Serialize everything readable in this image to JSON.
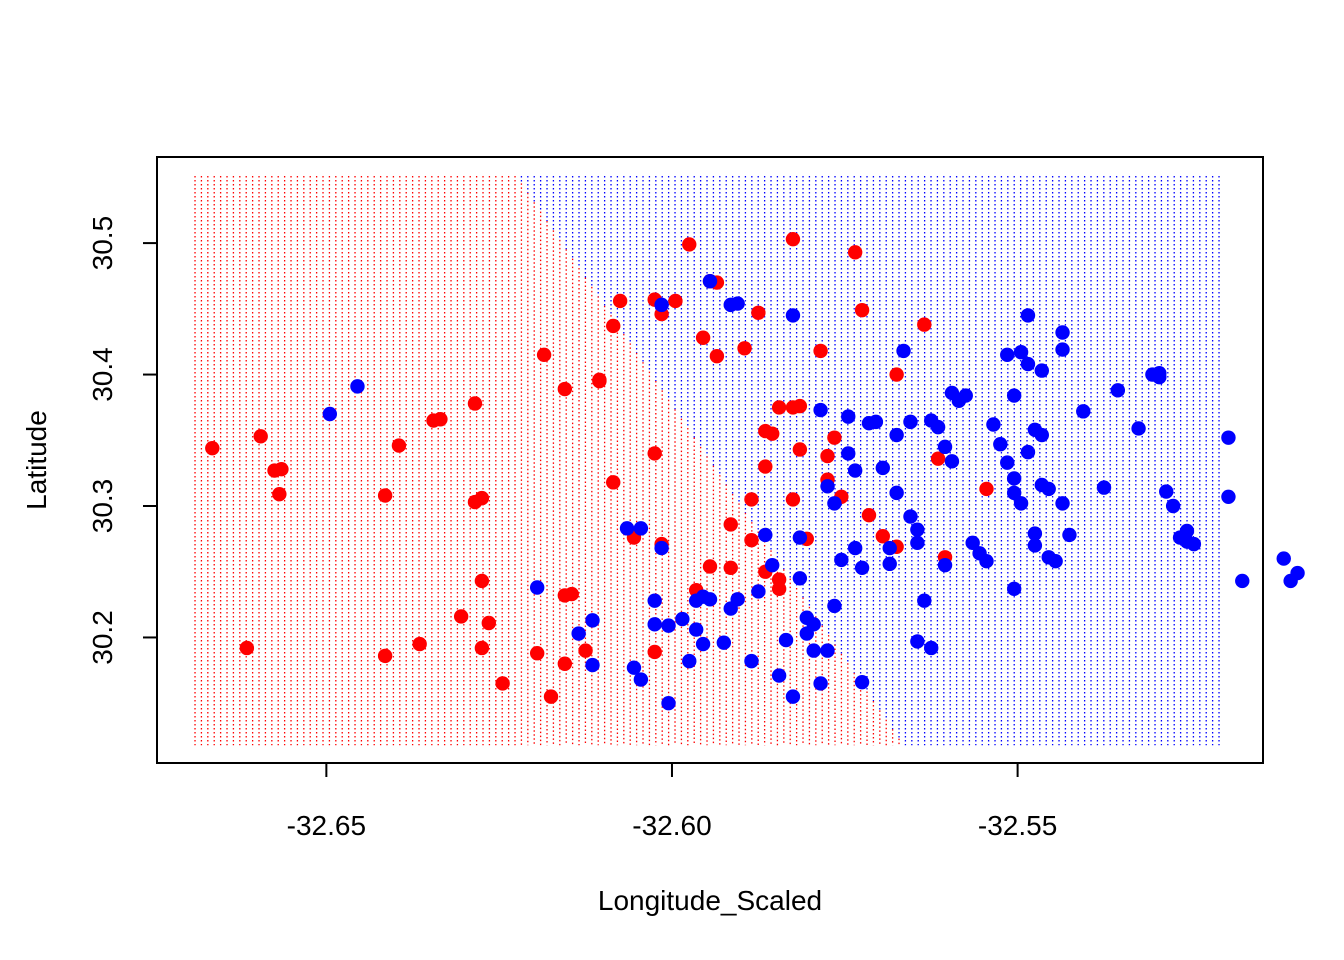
{
  "chart_data": {
    "type": "scatter",
    "title": "",
    "xlabel": "Longitude_Scaled",
    "ylabel": "Latitude",
    "xlim": [
      -32.6745,
      -32.5145
    ],
    "ylim": [
      30.1045,
      30.5655
    ],
    "x_ticks": [
      -32.65,
      -32.6,
      -32.55
    ],
    "x_tick_labels": [
      "-32.65",
      "-32.60",
      "-32.55"
    ],
    "y_ticks": [
      30.2,
      30.3,
      30.4,
      30.5
    ],
    "y_tick_labels": [
      "30.2",
      "30.3",
      "30.4",
      "30.5"
    ],
    "colors": {
      "class_red": "#ff0000",
      "class_blue": "#0000ff"
    },
    "decision_grid": {
      "x_range": [
        -32.669,
        -32.5205
      ],
      "y_range": [
        30.118,
        30.551
      ],
      "boundary_x": -32.6225,
      "boundary_y_low": 30.118,
      "boundary_y_high": 30.551,
      "boundary_top_x": -32.5665,
      "left_color": "#ff0000",
      "right_color": "#0000ff"
    },
    "series": [
      {
        "color": "#ff0000",
        "points": [
          [
            -32.6665,
            30.344
          ],
          [
            -32.6595,
            30.353
          ],
          [
            -32.6575,
            30.327
          ],
          [
            -32.6565,
            30.328
          ],
          [
            -32.6568,
            30.309
          ],
          [
            -32.6615,
            30.192
          ],
          [
            -32.6415,
            30.186
          ],
          [
            -32.6395,
            30.346
          ],
          [
            -32.6415,
            30.308
          ],
          [
            -32.6345,
            30.365
          ],
          [
            -32.6335,
            30.366
          ],
          [
            -32.6365,
            30.195
          ],
          [
            -32.6305,
            30.216
          ],
          [
            -32.6285,
            30.378
          ],
          [
            -32.6275,
            30.306
          ],
          [
            -32.6285,
            30.303
          ],
          [
            -32.6275,
            30.243
          ],
          [
            -32.6275,
            30.192
          ],
          [
            -32.6265,
            30.211
          ],
          [
            -32.6245,
            30.165
          ],
          [
            -32.6195,
            30.188
          ],
          [
            -32.6185,
            30.415
          ],
          [
            -32.6175,
            30.155
          ],
          [
            -32.6155,
            30.389
          ],
          [
            -32.6155,
            30.232
          ],
          [
            -32.6145,
            30.233
          ],
          [
            -32.6155,
            30.18
          ],
          [
            -32.6125,
            30.19
          ],
          [
            -32.6105,
            30.395
          ],
          [
            -32.6105,
            30.396
          ],
          [
            -32.6085,
            30.437
          ],
          [
            -32.6085,
            30.318
          ],
          [
            -32.6075,
            30.456
          ],
          [
            -32.6055,
            30.276
          ],
          [
            -32.6025,
            30.457
          ],
          [
            -32.6025,
            30.34
          ],
          [
            -32.6015,
            30.446
          ],
          [
            -32.6015,
            30.271
          ],
          [
            -32.6025,
            30.189
          ],
          [
            -32.5995,
            30.456
          ],
          [
            -32.5975,
            30.499
          ],
          [
            -32.5965,
            30.236
          ],
          [
            -32.5945,
            30.471
          ],
          [
            -32.5955,
            30.428
          ],
          [
            -32.5935,
            30.47
          ],
          [
            -32.5945,
            30.254
          ],
          [
            -32.5935,
            30.414
          ],
          [
            -32.5915,
            30.286
          ],
          [
            -32.5915,
            30.253
          ],
          [
            -32.5895,
            30.42
          ],
          [
            -32.5885,
            30.274
          ],
          [
            -32.5875,
            30.447
          ],
          [
            -32.5885,
            30.305
          ],
          [
            -32.5865,
            30.357
          ],
          [
            -32.5855,
            30.355
          ],
          [
            -32.5865,
            30.33
          ],
          [
            -32.5865,
            30.25
          ],
          [
            -32.5845,
            30.244
          ],
          [
            -32.5845,
            30.237
          ],
          [
            -32.5845,
            30.375
          ],
          [
            -32.5825,
            30.503
          ],
          [
            -32.5825,
            30.375
          ],
          [
            -32.5815,
            30.376
          ],
          [
            -32.5825,
            30.305
          ],
          [
            -32.5815,
            30.343
          ],
          [
            -32.5805,
            30.275
          ],
          [
            -32.5785,
            30.418
          ],
          [
            -32.5775,
            30.338
          ],
          [
            -32.5775,
            30.32
          ],
          [
            -32.5765,
            30.352
          ],
          [
            -32.5755,
            30.307
          ],
          [
            -32.5735,
            30.493
          ],
          [
            -32.5725,
            30.449
          ],
          [
            -32.5715,
            30.293
          ],
          [
            -32.5695,
            30.277
          ],
          [
            -32.5675,
            30.269
          ],
          [
            -32.5675,
            30.4
          ],
          [
            -32.5635,
            30.438
          ],
          [
            -32.5615,
            30.336
          ],
          [
            -32.5605,
            30.261
          ],
          [
            -32.5545,
            30.313
          ]
        ]
      },
      {
        "color": "#0000ff",
        "points": [
          [
            -32.6495,
            30.37
          ],
          [
            -32.6455,
            30.391
          ],
          [
            -32.6195,
            30.238
          ],
          [
            -32.6135,
            30.203
          ],
          [
            -32.6115,
            30.213
          ],
          [
            -32.6115,
            30.179
          ],
          [
            -32.6065,
            30.283
          ],
          [
            -32.6055,
            30.177
          ],
          [
            -32.6045,
            30.168
          ],
          [
            -32.6045,
            30.283
          ],
          [
            -32.6025,
            30.228
          ],
          [
            -32.6025,
            30.21
          ],
          [
            -32.6015,
            30.453
          ],
          [
            -32.6015,
            30.268
          ],
          [
            -32.6005,
            30.209
          ],
          [
            -32.6005,
            30.15
          ],
          [
            -32.5985,
            30.214
          ],
          [
            -32.5975,
            30.182
          ],
          [
            -32.5965,
            30.206
          ],
          [
            -32.5955,
            30.195
          ],
          [
            -32.5965,
            30.228
          ],
          [
            -32.5955,
            30.231
          ],
          [
            -32.5945,
            30.229
          ],
          [
            -32.5945,
            30.471
          ],
          [
            -32.5915,
            30.453
          ],
          [
            -32.5905,
            30.454
          ],
          [
            -32.5925,
            30.196
          ],
          [
            -32.5915,
            30.222
          ],
          [
            -32.5905,
            30.229
          ],
          [
            -32.5885,
            30.182
          ],
          [
            -32.5875,
            30.235
          ],
          [
            -32.5865,
            30.278
          ],
          [
            -32.5855,
            30.255
          ],
          [
            -32.5845,
            30.171
          ],
          [
            -32.5835,
            30.198
          ],
          [
            -32.5825,
            30.445
          ],
          [
            -32.5825,
            30.155
          ],
          [
            -32.5815,
            30.245
          ],
          [
            -32.5815,
            30.276
          ],
          [
            -32.5805,
            30.203
          ],
          [
            -32.5805,
            30.215
          ],
          [
            -32.5795,
            30.21
          ],
          [
            -32.5795,
            30.19
          ],
          [
            -32.5785,
            30.165
          ],
          [
            -32.5775,
            30.19
          ],
          [
            -32.5785,
            30.373
          ],
          [
            -32.5775,
            30.315
          ],
          [
            -32.5765,
            30.224
          ],
          [
            -32.5765,
            30.302
          ],
          [
            -32.5755,
            30.259
          ],
          [
            -32.5745,
            30.34
          ],
          [
            -32.5745,
            30.368
          ],
          [
            -32.5735,
            30.327
          ],
          [
            -32.5735,
            30.268
          ],
          [
            -32.5725,
            30.166
          ],
          [
            -32.5725,
            30.253
          ],
          [
            -32.5715,
            30.363
          ],
          [
            -32.5705,
            30.364
          ],
          [
            -32.5695,
            30.329
          ],
          [
            -32.5685,
            30.256
          ],
          [
            -32.5685,
            30.268
          ],
          [
            -32.5675,
            30.354
          ],
          [
            -32.5675,
            30.31
          ],
          [
            -32.5665,
            30.418
          ],
          [
            -32.5655,
            30.364
          ],
          [
            -32.5655,
            30.292
          ],
          [
            -32.5645,
            30.282
          ],
          [
            -32.5645,
            30.272
          ],
          [
            -32.5635,
            30.228
          ],
          [
            -32.5645,
            30.197
          ],
          [
            -32.5625,
            30.192
          ],
          [
            -32.5625,
            30.365
          ],
          [
            -32.5615,
            30.36
          ],
          [
            -32.5605,
            30.345
          ],
          [
            -32.5605,
            30.255
          ],
          [
            -32.5595,
            30.334
          ],
          [
            -32.5595,
            30.386
          ],
          [
            -32.5585,
            30.38
          ],
          [
            -32.5575,
            30.384
          ],
          [
            -32.5565,
            30.272
          ],
          [
            -32.5555,
            30.264
          ],
          [
            -32.5545,
            30.258
          ],
          [
            -32.5535,
            30.362
          ],
          [
            -32.5525,
            30.347
          ],
          [
            -32.5515,
            30.333
          ],
          [
            -32.5515,
            30.415
          ],
          [
            -32.5505,
            30.384
          ],
          [
            -32.5505,
            30.321
          ],
          [
            -32.5505,
            30.31
          ],
          [
            -32.5505,
            30.237
          ],
          [
            -32.5495,
            30.417
          ],
          [
            -32.5495,
            30.302
          ],
          [
            -32.5485,
            30.445
          ],
          [
            -32.5485,
            30.408
          ],
          [
            -32.5485,
            30.341
          ],
          [
            -32.5475,
            30.358
          ],
          [
            -32.5475,
            30.279
          ],
          [
            -32.5475,
            30.27
          ],
          [
            -32.5465,
            30.403
          ],
          [
            -32.5465,
            30.354
          ],
          [
            -32.5465,
            30.316
          ],
          [
            -32.5455,
            30.313
          ],
          [
            -32.5455,
            30.261
          ],
          [
            -32.5445,
            30.258
          ],
          [
            -32.5435,
            30.302
          ],
          [
            -32.5435,
            30.432
          ],
          [
            -32.5435,
            30.419
          ],
          [
            -32.5425,
            30.278
          ],
          [
            -32.5405,
            30.372
          ],
          [
            -32.5375,
            30.314
          ],
          [
            -32.5355,
            30.388
          ],
          [
            -32.5325,
            30.359
          ],
          [
            -32.5305,
            30.4
          ],
          [
            -32.5295,
            30.401
          ],
          [
            -32.5295,
            30.398
          ],
          [
            -32.5285,
            30.311
          ],
          [
            -32.5275,
            30.3
          ],
          [
            -32.5265,
            30.276
          ],
          [
            -32.5255,
            30.273
          ],
          [
            -32.5255,
            30.281
          ],
          [
            -32.5245,
            30.271
          ],
          [
            -32.5195,
            30.352
          ],
          [
            -32.5195,
            30.307
          ],
          [
            -32.5115,
            30.26
          ],
          [
            -32.5105,
            30.243
          ],
          [
            -32.5095,
            30.249
          ],
          [
            -32.5175,
            30.243
          ]
        ]
      }
    ]
  }
}
